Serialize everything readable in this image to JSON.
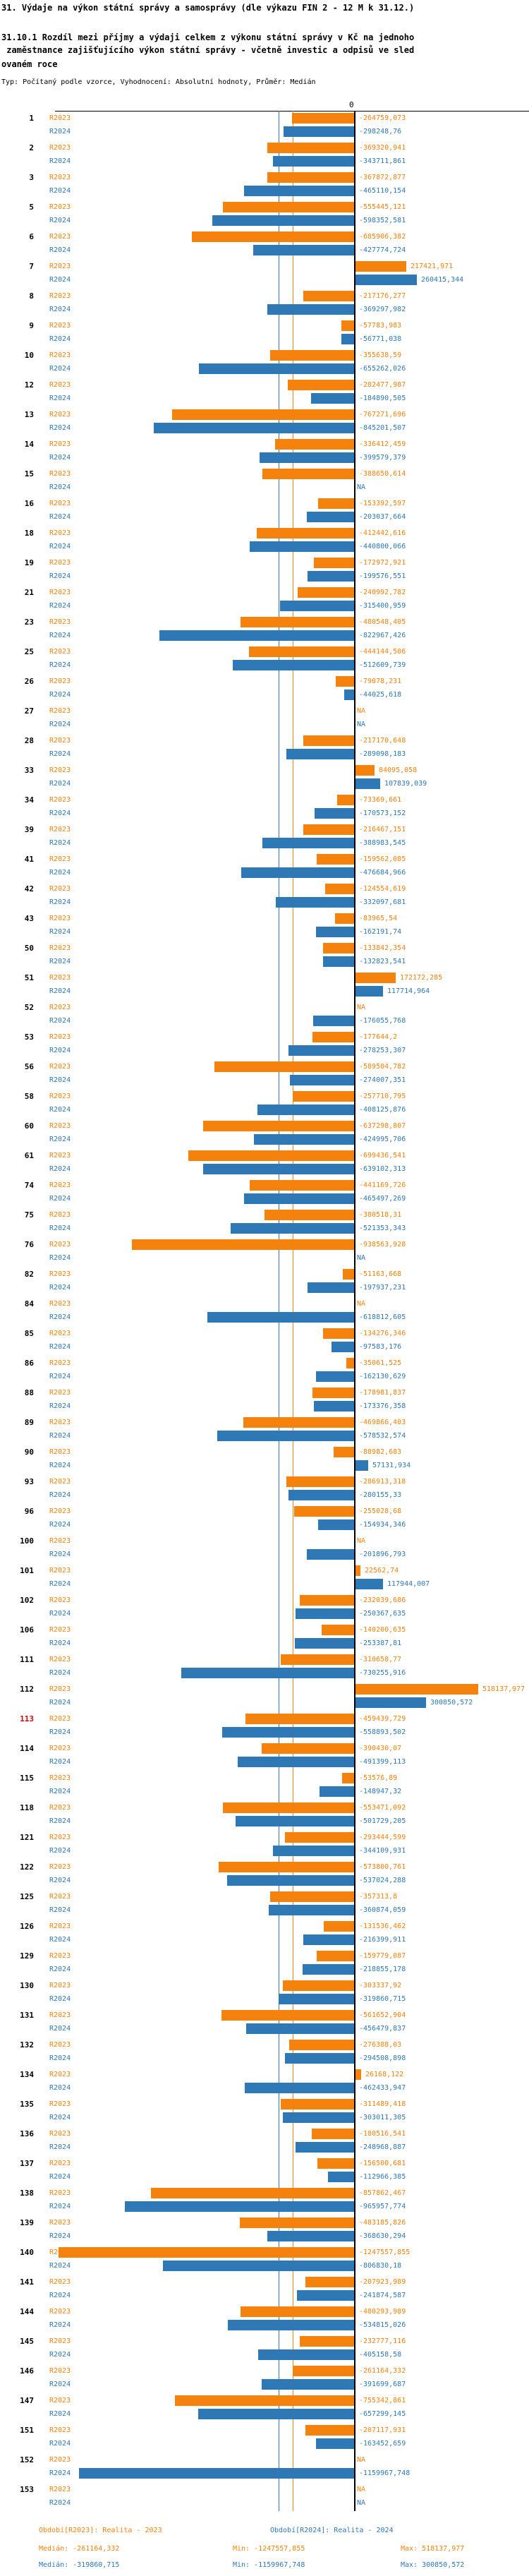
{
  "header": {
    "title": "31. Výdaje na výkon státní správy a samosprávy (dle výkazu FIN 2 - 12 M k 31.12.)",
    "subtitle_lines": [
      "31.10.1 Rozdíl mezi příjmy a výdaji celkem z výkonu státní správy v Kč na jednoho",
      " zaměstnance zajišťujícího výkon státní správy - včetně investic a odpisů ve sled",
      "ovaném roce"
    ],
    "meta": "Typ: Počítaný podle vzorce, Vyhodnocení: Absolutní hodnoty, Průměr: Medián"
  },
  "chart_data": {
    "type": "bar",
    "orientation": "horizontal",
    "zero_label": "0",
    "na_label": "NA",
    "series": [
      {
        "name": "R2023",
        "color": "#F5820D"
      },
      {
        "name": "R2024",
        "color": "#2E79B5"
      }
    ],
    "highlighted_rows": [
      "113"
    ],
    "highlight_color": "#E00000",
    "medians": {
      "R2023": -261164.332,
      "R2024": -319860.715
    },
    "x_range": [
      -1300000,
      600000
    ],
    "rows": [
      [
        "1",
        -264759.073,
        -298248.76
      ],
      [
        "2",
        -369320.941,
        -343711.861
      ],
      [
        "3",
        -367872.877,
        -465110.154
      ],
      [
        "5",
        -555445.121,
        -598352.581
      ],
      [
        "6",
        -685906.382,
        -427774.724
      ],
      [
        "7",
        217421.971,
        260415.344
      ],
      [
        "8",
        -217176.277,
        -369297.982
      ],
      [
        "9",
        -57783.983,
        -56771.038
      ],
      [
        "10",
        -355638.59,
        -655262.026
      ],
      [
        "12",
        -282477.987,
        -184890.505
      ],
      [
        "13",
        -767271.696,
        -845201.507
      ],
      [
        "14",
        -336412.459,
        -399579.379
      ],
      [
        "15",
        -388650.614,
        null
      ],
      [
        "16",
        -153392.597,
        -203037.664
      ],
      [
        "18",
        -412442.616,
        -440800.066
      ],
      [
        "19",
        -172972.921,
        -199576.551
      ],
      [
        "21",
        -240992.782,
        -315400.959
      ],
      [
        "23",
        -480548.405,
        -822967.426
      ],
      [
        "25",
        -444144.506,
        -512609.739
      ],
      [
        "26",
        -79078.231,
        -44025.618
      ],
      [
        "27",
        null,
        null
      ],
      [
        "28",
        -217170.648,
        -289098.183
      ],
      [
        "33",
        84095.058,
        107839.039
      ],
      [
        "34",
        -73369.661,
        -170573.152
      ],
      [
        "39",
        -216467.151,
        -388983.545
      ],
      [
        "41",
        -159562.085,
        -476684.966
      ],
      [
        "42",
        -124554.619,
        -332097.681
      ],
      [
        "43",
        -83965.54,
        -162191.74
      ],
      [
        "50",
        -133842.354,
        -132823.541
      ],
      [
        "51",
        172172.285,
        117714.964
      ],
      [
        "52",
        null,
        -176055.768
      ],
      [
        "53",
        -177644.2,
        -278253.307
      ],
      [
        "56",
        -589504.782,
        -274007.351
      ],
      [
        "58",
        -257710.795,
        -408125.876
      ],
      [
        "60",
        -637298.807,
        -424995.706
      ],
      [
        "61",
        -699436.541,
        -639102.313
      ],
      [
        "74",
        -441169.726,
        -465497.269
      ],
      [
        "75",
        -380518.31,
        -521353.343
      ],
      [
        "76",
        -938563.928,
        null
      ],
      [
        "82",
        -51163.668,
        -197937.231
      ],
      [
        "84",
        null,
        -618812.605
      ],
      [
        "85",
        -134276.346,
        -97583.176
      ],
      [
        "86",
        -35061.525,
        -162130.629
      ],
      [
        "88",
        -178981.837,
        -173376.358
      ],
      [
        "89",
        -469866.403,
        -578532.574
      ],
      [
        "90",
        -88982.683,
        57131.934
      ],
      [
        "93",
        -286913.318,
        -280155.33
      ],
      [
        "96",
        -255028.68,
        -154934.346
      ],
      [
        "100",
        null,
        -201896.793
      ],
      [
        "101",
        22562.74,
        117944.007
      ],
      [
        "102",
        -232039.686,
        -250367.635
      ],
      [
        "106",
        -140200.635,
        -253387.81
      ],
      [
        "111",
        -310658.77,
        -730255.916
      ],
      [
        "112",
        518137.977,
        300850.572
      ],
      [
        "113",
        -459439.729,
        -558893.502
      ],
      [
        "114",
        -390430.07,
        -491399.113
      ],
      [
        "115",
        -53576.89,
        -148947.32
      ],
      [
        "118",
        -553471.092,
        -501729.205
      ],
      [
        "121",
        -293444.599,
        -344109.931
      ],
      [
        "122",
        -573800.761,
        -537024.288
      ],
      [
        "125",
        -357313.8,
        -360874.059
      ],
      [
        "126",
        -131536.462,
        -216399.911
      ],
      [
        "129",
        -159779.087,
        -218855.178
      ],
      [
        "130",
        -303337.92,
        -319860.715
      ],
      [
        "131",
        -561652.904,
        -456479.837
      ],
      [
        "132",
        -276388.03,
        -294508.898
      ],
      [
        "134",
        26168.122,
        -462433.947
      ],
      [
        "135",
        -311489.418,
        -303011.305
      ],
      [
        "136",
        -180516.541,
        -248968.887
      ],
      [
        "137",
        -156500.681,
        -112966.385
      ],
      [
        "138",
        -857862.467,
        -965957.774
      ],
      [
        "139",
        -483185.826,
        -368630.294
      ],
      [
        "140",
        -1247557.855,
        -806830.18
      ],
      [
        "141",
        -207923.989,
        -241874.587
      ],
      [
        "144",
        -480293.989,
        -534815.026
      ],
      [
        "145",
        -232777.116,
        -405158.58
      ],
      [
        "146",
        -261164.332,
        -391699.687
      ],
      [
        "147",
        -755342.861,
        -657299.145
      ],
      [
        "151",
        -207117.931,
        -163452.659
      ],
      [
        "152",
        null,
        -1159967.748
      ],
      [
        "153",
        null,
        null
      ]
    ]
  },
  "footer": {
    "legend": {
      "r2023": "Období[R2023]: Realita - 2023",
      "r2024": "Období[R2024]: Realita - 2024"
    },
    "stats": {
      "r2023": {
        "median": "Medián: -261164,332",
        "min": "Min: -1247557,855",
        "max": "Max: 518137,977"
      },
      "r2024": {
        "median": "Medián: -319860,715",
        "min": "Min: -1159967,748",
        "max": "Max: 300850,572"
      }
    }
  }
}
